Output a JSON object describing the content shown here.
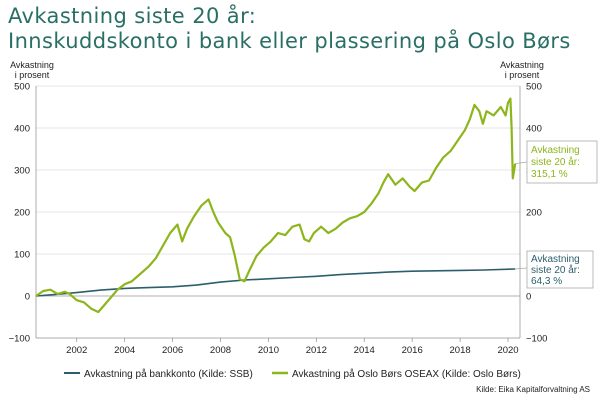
{
  "header": {
    "title_line1": "Avkastning siste 20 år:",
    "title_line2": "Innskuddskonto i bank eller plassering på Oslo Børs"
  },
  "axes": {
    "left_label_line1": "Avkastning",
    "left_label_line2": "i prosent",
    "right_label_line1": "Avkastning",
    "right_label_line2": "i prosent"
  },
  "source": "Kilde: Eika Kapitalforvaltning AS",
  "colors": {
    "bank": "#2c5f6b",
    "oseax": "#8db51c",
    "title": "#2a6f66",
    "grid": "#dcdcdc"
  },
  "callouts": {
    "oseax": {
      "line1": "Avkastning",
      "line2": "siste 20 år:",
      "line3": "315,1 %"
    },
    "bank": {
      "line1": "Avkastning",
      "line2": "siste 20 år:",
      "line3": "64,3 %"
    }
  },
  "chart_data": {
    "type": "line",
    "xlim": [
      2000.3,
      2020.5
    ],
    "ylim": [
      -100,
      500
    ],
    "x_ticks": [
      2002,
      2004,
      2006,
      2008,
      2010,
      2012,
      2014,
      2016,
      2018,
      2020
    ],
    "y_ticks": [
      -100,
      0,
      100,
      200,
      300,
      400,
      500
    ],
    "y_tick_labels": [
      "−100",
      "0",
      "100",
      "200",
      "300",
      "400",
      "500"
    ],
    "grid": "horizontal",
    "legend_position": "bottom",
    "series": [
      {
        "name": "Avkastning på bankkonto (Kilde: SSB)",
        "color": "#2c5f6b",
        "x": [
          2000.3,
          2001,
          2002,
          2003,
          2004,
          2005,
          2006,
          2007,
          2008,
          2009,
          2010,
          2011,
          2012,
          2013,
          2014,
          2015,
          2016,
          2017,
          2018,
          2019,
          2020.3
        ],
        "y": [
          0,
          3,
          8,
          14,
          18,
          20,
          22,
          26,
          33,
          38,
          41,
          44,
          47,
          51,
          54,
          57,
          59,
          60,
          61,
          62,
          64.3
        ]
      },
      {
        "name": "Avkastning på Oslo Børs OSEAX (Kilde: Oslo Børs)",
        "color": "#8db51c",
        "x": [
          2000.3,
          2000.6,
          2000.9,
          2001.2,
          2001.5,
          2001.7,
          2002.0,
          2002.3,
          2002.6,
          2002.9,
          2003.1,
          2003.4,
          2003.7,
          2004.0,
          2004.3,
          2004.6,
          2005.0,
          2005.3,
          2005.6,
          2005.9,
          2006.2,
          2006.4,
          2006.6,
          2006.9,
          2007.2,
          2007.5,
          2007.7,
          2007.9,
          2008.2,
          2008.4,
          2008.6,
          2008.8,
          2009.0,
          2009.2,
          2009.5,
          2009.8,
          2010.1,
          2010.4,
          2010.7,
          2011.0,
          2011.3,
          2011.5,
          2011.7,
          2011.9,
          2012.2,
          2012.5,
          2012.8,
          2013.1,
          2013.4,
          2013.7,
          2014.0,
          2014.3,
          2014.6,
          2014.8,
          2015.0,
          2015.3,
          2015.6,
          2015.9,
          2016.1,
          2016.4,
          2016.7,
          2017.0,
          2017.3,
          2017.6,
          2017.9,
          2018.2,
          2018.4,
          2018.6,
          2018.8,
          2018.95,
          2019.1,
          2019.4,
          2019.7,
          2019.9,
          2020.0,
          2020.1,
          2020.15,
          2020.2,
          2020.3
        ],
        "y": [
          0,
          12,
          15,
          5,
          10,
          5,
          -10,
          -15,
          -30,
          -38,
          -25,
          -5,
          15,
          28,
          35,
          50,
          70,
          90,
          120,
          150,
          170,
          130,
          160,
          190,
          215,
          230,
          200,
          175,
          150,
          140,
          95,
          40,
          35,
          60,
          95,
          115,
          130,
          150,
          145,
          165,
          170,
          135,
          130,
          150,
          165,
          150,
          160,
          175,
          185,
          190,
          200,
          220,
          245,
          270,
          290,
          265,
          280,
          260,
          250,
          270,
          275,
          305,
          330,
          345,
          370,
          395,
          420,
          455,
          440,
          410,
          440,
          430,
          450,
          430,
          460,
          470,
          400,
          280,
          315.1
        ]
      }
    ]
  }
}
